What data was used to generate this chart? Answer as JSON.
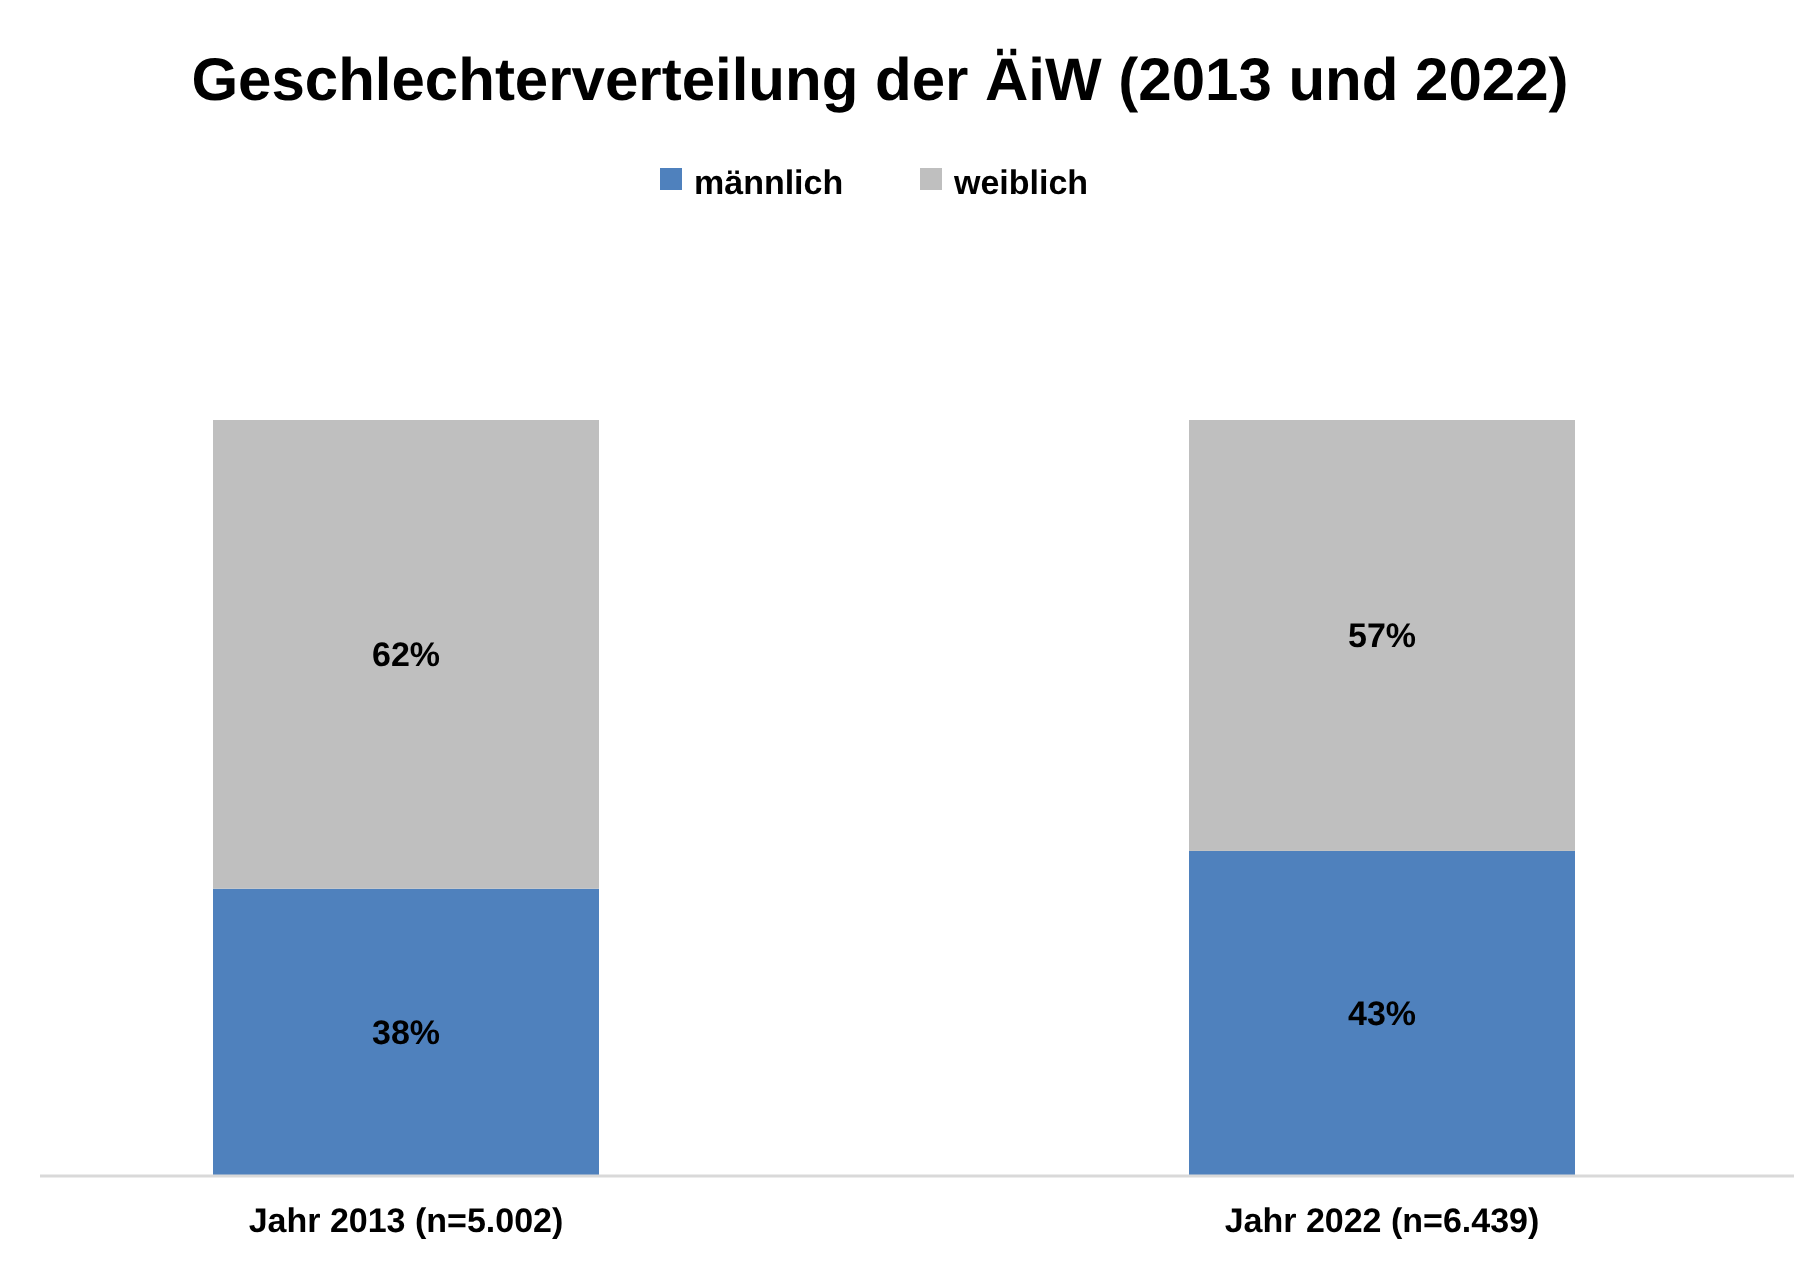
{
  "chart_data": {
    "type": "bar",
    "title": "Geschlechterverteilung der ÄiW  (2013 und 2022)",
    "categories": [
      "Jahr 2013 (n=5.002)",
      "Jahr 2022 (n=6.439)"
    ],
    "stacked": true,
    "legend": "top",
    "series": [
      {
        "name": "männlich",
        "color": "#4f81bd",
        "values": [
          38,
          43
        ],
        "value_labels": [
          "38%",
          "43%"
        ]
      },
      {
        "name": "weiblich",
        "color": "#bfbfbf",
        "values": [
          62,
          57
        ],
        "value_labels": [
          "62%",
          "57%"
        ]
      }
    ]
  }
}
